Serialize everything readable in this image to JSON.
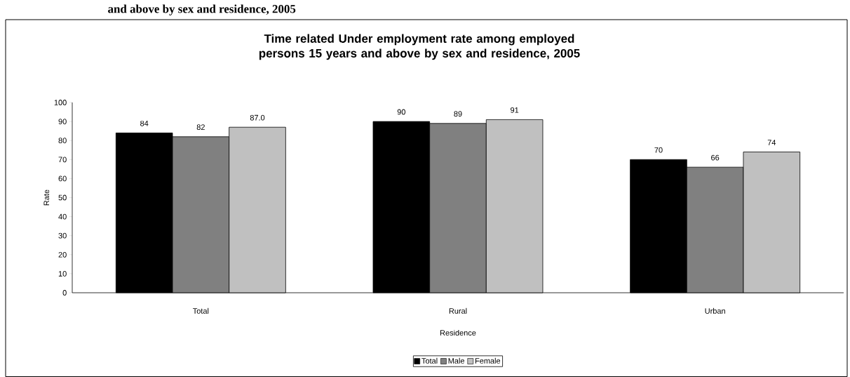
{
  "chart_data": {
    "type": "bar",
    "title": "Time related Under employment rate among employed persons 15 years and above by sex and residence, 2005",
    "annotations": [
      "and above by sex and residence, 2005"
    ],
    "xlabel": "Residence",
    "ylabel": "Rate",
    "categories": [
      "Total",
      "Rural",
      "Urban"
    ],
    "series": [
      {
        "name": "Total",
        "color": "#000000",
        "values": [
          84,
          90,
          70
        ],
        "value_labels": [
          "84",
          "90",
          "70"
        ]
      },
      {
        "name": "Male",
        "color": "#808080",
        "values": [
          82,
          89,
          66
        ],
        "value_labels": [
          "82",
          "89",
          "66"
        ]
      },
      {
        "name": "Female",
        "color": "#c0c0c0",
        "values": [
          87.0,
          91,
          74
        ],
        "value_labels": [
          "87.0",
          "91",
          "74"
        ]
      }
    ],
    "ylim": [
      0,
      100
    ],
    "yticks": [
      0,
      10,
      20,
      30,
      40,
      50,
      60,
      70,
      80,
      90,
      100
    ],
    "grid": false,
    "legend": "bottom"
  }
}
